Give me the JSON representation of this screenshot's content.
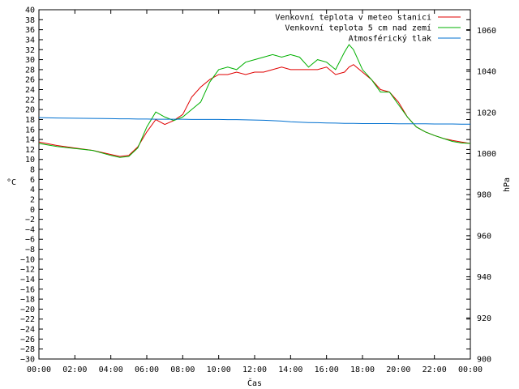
{
  "chart_data": {
    "type": "line",
    "xlabel": "Čas",
    "ylabel": "°C",
    "y2label": "hPa",
    "grid": false,
    "legend_position": "top-right",
    "xlim": [
      0,
      24
    ],
    "ylim": [
      -30,
      40
    ],
    "y2lim": [
      900,
      1070
    ],
    "x_ticks": [
      "00:00",
      "02:00",
      "04:00",
      "06:00",
      "08:00",
      "10:00",
      "12:00",
      "14:00",
      "16:00",
      "18:00",
      "20:00",
      "22:00",
      "00:00"
    ],
    "y_ticks": [
      -30,
      -28,
      -26,
      -24,
      -22,
      -20,
      -18,
      -16,
      -14,
      -12,
      -10,
      -8,
      -6,
      -4,
      -2,
      0,
      2,
      4,
      6,
      8,
      10,
      12,
      14,
      16,
      18,
      20,
      22,
      24,
      26,
      28,
      30,
      32,
      34,
      36,
      38,
      40
    ],
    "y2_ticks": [
      900,
      920,
      940,
      960,
      980,
      1000,
      1020,
      1040,
      1060
    ],
    "x": [
      0,
      1,
      2,
      3,
      4,
      4.5,
      5,
      5.5,
      6,
      6.5,
      7,
      7.5,
      8,
      8.5,
      9,
      9.5,
      10,
      10.5,
      11,
      11.5,
      12,
      12.5,
      13,
      13.5,
      14,
      14.5,
      15,
      15.5,
      16,
      16.5,
      17,
      17.25,
      17.5,
      18,
      18.5,
      19,
      19.5,
      20,
      20.5,
      21,
      21.5,
      22,
      22.5,
      23,
      23.5,
      24
    ],
    "series": [
      {
        "name": "Venkovní teplota v meteo stanici",
        "color": "#e00000",
        "axis": "left",
        "values": [
          13.5,
          12.8,
          12.3,
          11.8,
          11.0,
          10.6,
          10.8,
          12.5,
          15.5,
          18.0,
          17.0,
          17.8,
          19.0,
          22.5,
          24.5,
          26.0,
          27.0,
          27.0,
          27.5,
          27.0,
          27.5,
          27.5,
          28.0,
          28.5,
          28.0,
          28.0,
          28.0,
          28.0,
          28.5,
          27.0,
          27.5,
          28.5,
          29.0,
          27.5,
          26.0,
          24.0,
          23.5,
          21.5,
          18.5,
          16.5,
          15.5,
          14.8,
          14.2,
          13.8,
          13.5,
          13.2
        ]
      },
      {
        "name": "Venkovní teplota 5 cm nad zemí",
        "color": "#00b000",
        "axis": "left",
        "values": [
          13.2,
          12.6,
          12.2,
          11.8,
          10.8,
          10.4,
          10.6,
          12.3,
          16.5,
          19.5,
          18.5,
          17.8,
          18.5,
          20.0,
          21.5,
          25.5,
          28.0,
          28.5,
          28.0,
          29.5,
          30.0,
          30.5,
          31.0,
          30.5,
          31.0,
          30.5,
          28.5,
          30.0,
          29.5,
          28.0,
          31.5,
          33.0,
          32.0,
          28.0,
          26.0,
          23.5,
          23.5,
          21.0,
          18.5,
          16.5,
          15.5,
          14.8,
          14.2,
          13.6,
          13.3,
          13.2
        ]
      },
      {
        "name": "Atmosférický tlak",
        "color": "#0070d0",
        "axis": "right",
        "values": [
          1017.5,
          1017.3,
          1017.2,
          1017.1,
          1017.0,
          1016.9,
          1016.9,
          1016.8,
          1016.8,
          1016.7,
          1016.7,
          1016.7,
          1016.7,
          1016.6,
          1016.6,
          1016.6,
          1016.6,
          1016.5,
          1016.5,
          1016.4,
          1016.3,
          1016.2,
          1016.0,
          1015.8,
          1015.5,
          1015.3,
          1015.1,
          1015.0,
          1014.9,
          1014.8,
          1014.7,
          1014.7,
          1014.7,
          1014.6,
          1014.6,
          1014.6,
          1014.6,
          1014.5,
          1014.5,
          1014.5,
          1014.5,
          1014.4,
          1014.4,
          1014.4,
          1014.3,
          1014.3
        ]
      }
    ]
  }
}
